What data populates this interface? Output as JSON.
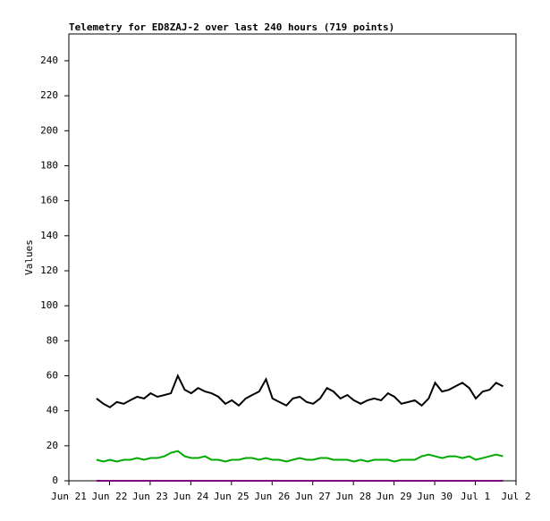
{
  "chart_data": {
    "type": "line",
    "title": "Telemetry for ED8ZAJ-2 over last 240 hours (719 points)",
    "y_label": "Values",
    "x": [
      0.68,
      0.85,
      1.01,
      1.18,
      1.35,
      1.51,
      1.68,
      1.85,
      2.01,
      2.18,
      2.35,
      2.51,
      2.68,
      2.85,
      3.01,
      3.18,
      3.35,
      3.51,
      3.68,
      3.85,
      4.01,
      4.18,
      4.35,
      4.51,
      4.68,
      4.85,
      5.01,
      5.18,
      5.35,
      5.51,
      5.68,
      5.85,
      6.01,
      6.18,
      6.35,
      6.51,
      6.68,
      6.85,
      7.01,
      7.18,
      7.35,
      7.51,
      7.68,
      7.85,
      8.01,
      8.18,
      8.35,
      8.51,
      8.68,
      8.85,
      9.01,
      9.18,
      9.35,
      9.51,
      9.68,
      9.85,
      10.01,
      10.18,
      10.35,
      10.51,
      10.68
    ],
    "series": [
      {
        "color": "#000000",
        "values": [
          47,
          44,
          42,
          45,
          44,
          46,
          48,
          47,
          50,
          48,
          49,
          50,
          60,
          52,
          50,
          53,
          51,
          50,
          48,
          44,
          46,
          43,
          47,
          49,
          51,
          58,
          47,
          45,
          43,
          47,
          48,
          45,
          44,
          47,
          53,
          51,
          47,
          49,
          46,
          44,
          46,
          47,
          46,
          50,
          48,
          44,
          45,
          46,
          43,
          47,
          56,
          51,
          52,
          54,
          56,
          53,
          47,
          51,
          52,
          56,
          54
        ]
      },
      {
        "color": "#00aa00",
        "values": [
          12,
          11,
          12,
          11,
          12,
          12,
          13,
          12,
          13,
          13,
          14,
          16,
          17,
          14,
          13,
          13,
          14,
          12,
          12,
          11,
          12,
          12,
          13,
          13,
          12,
          13,
          12,
          12,
          11,
          12,
          13,
          12,
          12,
          13,
          13,
          12,
          12,
          12,
          11,
          12,
          11,
          12,
          12,
          12,
          11,
          12,
          12,
          12,
          14,
          15,
          14,
          13,
          14,
          14,
          13,
          14,
          12,
          13,
          14,
          15,
          14
        ]
      },
      {
        "color": "#800080",
        "values": [
          0,
          0,
          0,
          0,
          0,
          0,
          0,
          0,
          0,
          0,
          0,
          0,
          0,
          0,
          0,
          0,
          0,
          0,
          0,
          0,
          0,
          0,
          0,
          0,
          0,
          0,
          0,
          0,
          0,
          0,
          0,
          0,
          0,
          0,
          0,
          0,
          0,
          0,
          0,
          0,
          0,
          0,
          0,
          0,
          0,
          0,
          0,
          0,
          0,
          0,
          0,
          0,
          0,
          0,
          0,
          0,
          0,
          0,
          0,
          0,
          0
        ]
      }
    ],
    "xlim": [
      0,
      11
    ],
    "xticks": [
      {
        "value": 0,
        "label": "Jun 21"
      },
      {
        "value": 1,
        "label": "Jun 22"
      },
      {
        "value": 2,
        "label": "Jun 23"
      },
      {
        "value": 3,
        "label": "Jun 24"
      },
      {
        "value": 4,
        "label": "Jun 25"
      },
      {
        "value": 5,
        "label": "Jun 26"
      },
      {
        "value": 6,
        "label": "Jun 27"
      },
      {
        "value": 7,
        "label": "Jun 28"
      },
      {
        "value": 8,
        "label": "Jun 29"
      },
      {
        "value": 9,
        "label": "Jun 30"
      },
      {
        "value": 10,
        "label": "Jul 1"
      },
      {
        "value": 11,
        "label": "Jul 2"
      }
    ],
    "ylim": [
      0,
      255.3
    ],
    "yticks": [
      0,
      20,
      40,
      60,
      80,
      100,
      120,
      140,
      160,
      180,
      200,
      220,
      240
    ]
  }
}
